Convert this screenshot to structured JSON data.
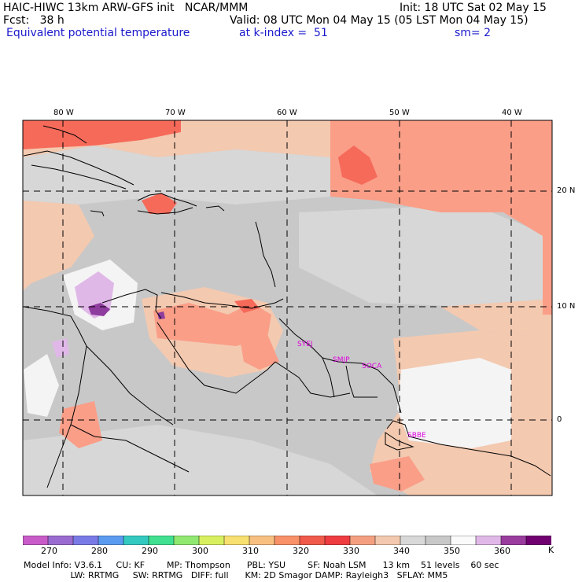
{
  "header": {
    "line1_left": "HAIC-HIWC 13km ARW-GFS init   NCAR/MMM",
    "line1_right": "Init: 18 UTC Sat 02 May 15",
    "line2_left": "Fcst:   38 h",
    "line2_right": "Valid: 08 UTC Mon 04 May 15 (05 LST Mon 04 May 15)",
    "line3_left": "Equivalent potential temperature",
    "line3_mid": "at k-index =  51",
    "line3_right": "sm= 2"
  },
  "map": {
    "lon_labels": [
      "80 W",
      "70 W",
      "60 W",
      "50 W",
      "40 W"
    ],
    "lat_labels": [
      "20 N",
      "10 N",
      "0"
    ],
    "stations": [
      "SYEJ",
      "SMJP",
      "SOCA",
      "SBBE"
    ],
    "colors": {
      "background": "#c8c8c8",
      "light": "#d7d7d7",
      "peach": "#f3c9b0",
      "salmon": "#fa9e88",
      "red": "#f66a5a",
      "deep_red": "#ee3f3c",
      "white": "#f4f4f4",
      "lilac": "#e0b8e8",
      "purple": "#8e3c9e",
      "station_text": "#dd00dd"
    }
  },
  "colorbar": {
    "unit": "K",
    "tick_labels": [
      "270",
      "280",
      "290",
      "300",
      "310",
      "320",
      "330",
      "340",
      "350",
      "360"
    ],
    "colors": [
      "#c85bc8",
      "#9a6bd0",
      "#7a7ae6",
      "#5a9bf0",
      "#33c9c0",
      "#40e090",
      "#90e870",
      "#d8f060",
      "#f8e070",
      "#f8c080",
      "#f89068",
      "#f05a4a",
      "#ee3c40",
      "#f4a080",
      "#f2c8ae",
      "#d8d8d8",
      "#c8c8c8",
      "#fafafa",
      "#e0b8e8",
      "#9a3c9e",
      "#700070"
    ]
  },
  "footer": {
    "line1": "Model Info: V3.6.1     CU: KF        MP: Thompson      PBL: YSU        SF: Noah LSM      13 km    51 levels    60 sec",
    "line2": "                 LW: RRTMG     SW: RRTMG   DIFF: full      KM: 2D Smagor DAMP: Rayleigh3   SFLAY: MM5"
  }
}
